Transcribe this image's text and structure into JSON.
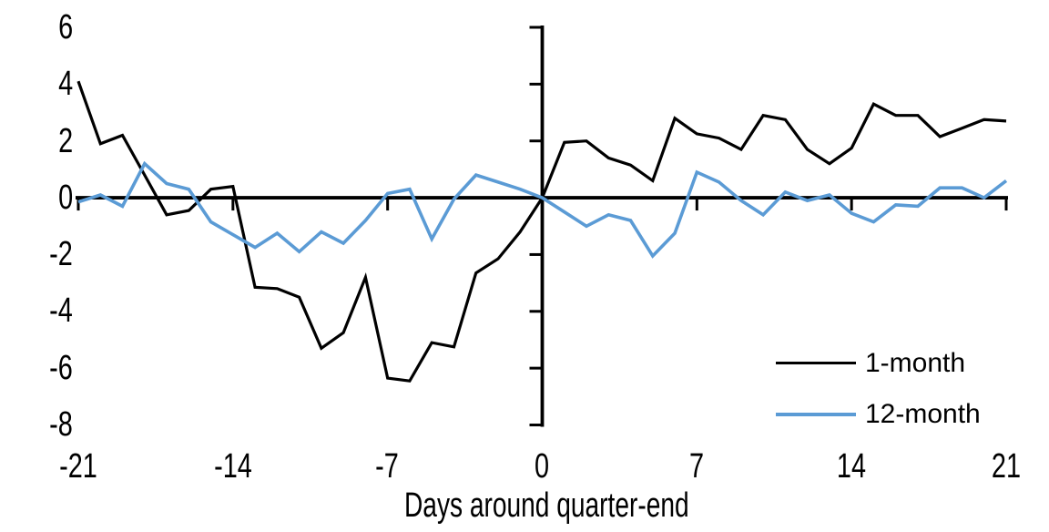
{
  "chart_data": {
    "type": "line",
    "title": "",
    "xlabel": "Days around quarter-end",
    "ylabel": "",
    "xlim": [
      -21,
      21
    ],
    "ylim": [
      -8,
      6
    ],
    "grid": false,
    "axes_cross_at": [
      0,
      0
    ],
    "legend_position": "inside-bottom-right",
    "x_tick_values": [
      -21,
      -14,
      -7,
      0,
      7,
      14,
      21
    ],
    "x_tick_labels": [
      "-21",
      "-14",
      "-7",
      "0",
      "7",
      "14",
      "21"
    ],
    "y_tick_values": [
      6,
      4,
      2,
      0,
      -2,
      -4,
      -6,
      -8
    ],
    "y_tick_labels": [
      "6",
      "4",
      "2",
      "0",
      "-2",
      "-4",
      "-6",
      "-8"
    ],
    "x": [
      -21,
      -20,
      -19,
      -18,
      -17,
      -16,
      -15,
      -14,
      -13,
      -12,
      -11,
      -10,
      -9,
      -8,
      -7,
      -6,
      -5,
      -4,
      -3,
      -2,
      -1,
      0,
      1,
      2,
      3,
      4,
      5,
      6,
      7,
      8,
      9,
      10,
      11,
      12,
      13,
      14,
      15,
      16,
      17,
      18,
      19,
      20,
      21
    ],
    "series": [
      {
        "name": "1-month",
        "color": "#000000",
        "values": [
          4.1,
          1.9,
          2.2,
          0.8,
          -0.6,
          -0.45,
          0.3,
          0.4,
          -3.15,
          -3.2,
          -3.5,
          -5.3,
          -4.75,
          -2.8,
          -6.35,
          -6.45,
          -5.1,
          -5.25,
          -2.65,
          -2.15,
          -1.2,
          0,
          1.95,
          2.0,
          1.4,
          1.15,
          0.6,
          2.8,
          2.25,
          2.1,
          1.7,
          2.9,
          2.75,
          1.7,
          1.2,
          1.75,
          3.3,
          2.9,
          2.9,
          2.15,
          2.45,
          2.75,
          2.7
        ]
      },
      {
        "name": "12-month",
        "color": "#5B9BD5",
        "values": [
          -0.15,
          0.1,
          -0.3,
          1.2,
          0.5,
          0.3,
          -0.85,
          -1.3,
          -1.75,
          -1.25,
          -1.9,
          -1.2,
          -1.6,
          -0.8,
          0.15,
          0.3,
          -1.45,
          -0.05,
          0.8,
          0.55,
          0.3,
          0,
          -0.5,
          -1.0,
          -0.6,
          -0.8,
          -2.05,
          -1.25,
          0.9,
          0.55,
          -0.1,
          -0.6,
          0.2,
          -0.1,
          0.1,
          -0.55,
          -0.85,
          -0.25,
          -0.3,
          0.35,
          0.35,
          0.0,
          0.6
        ]
      }
    ]
  }
}
